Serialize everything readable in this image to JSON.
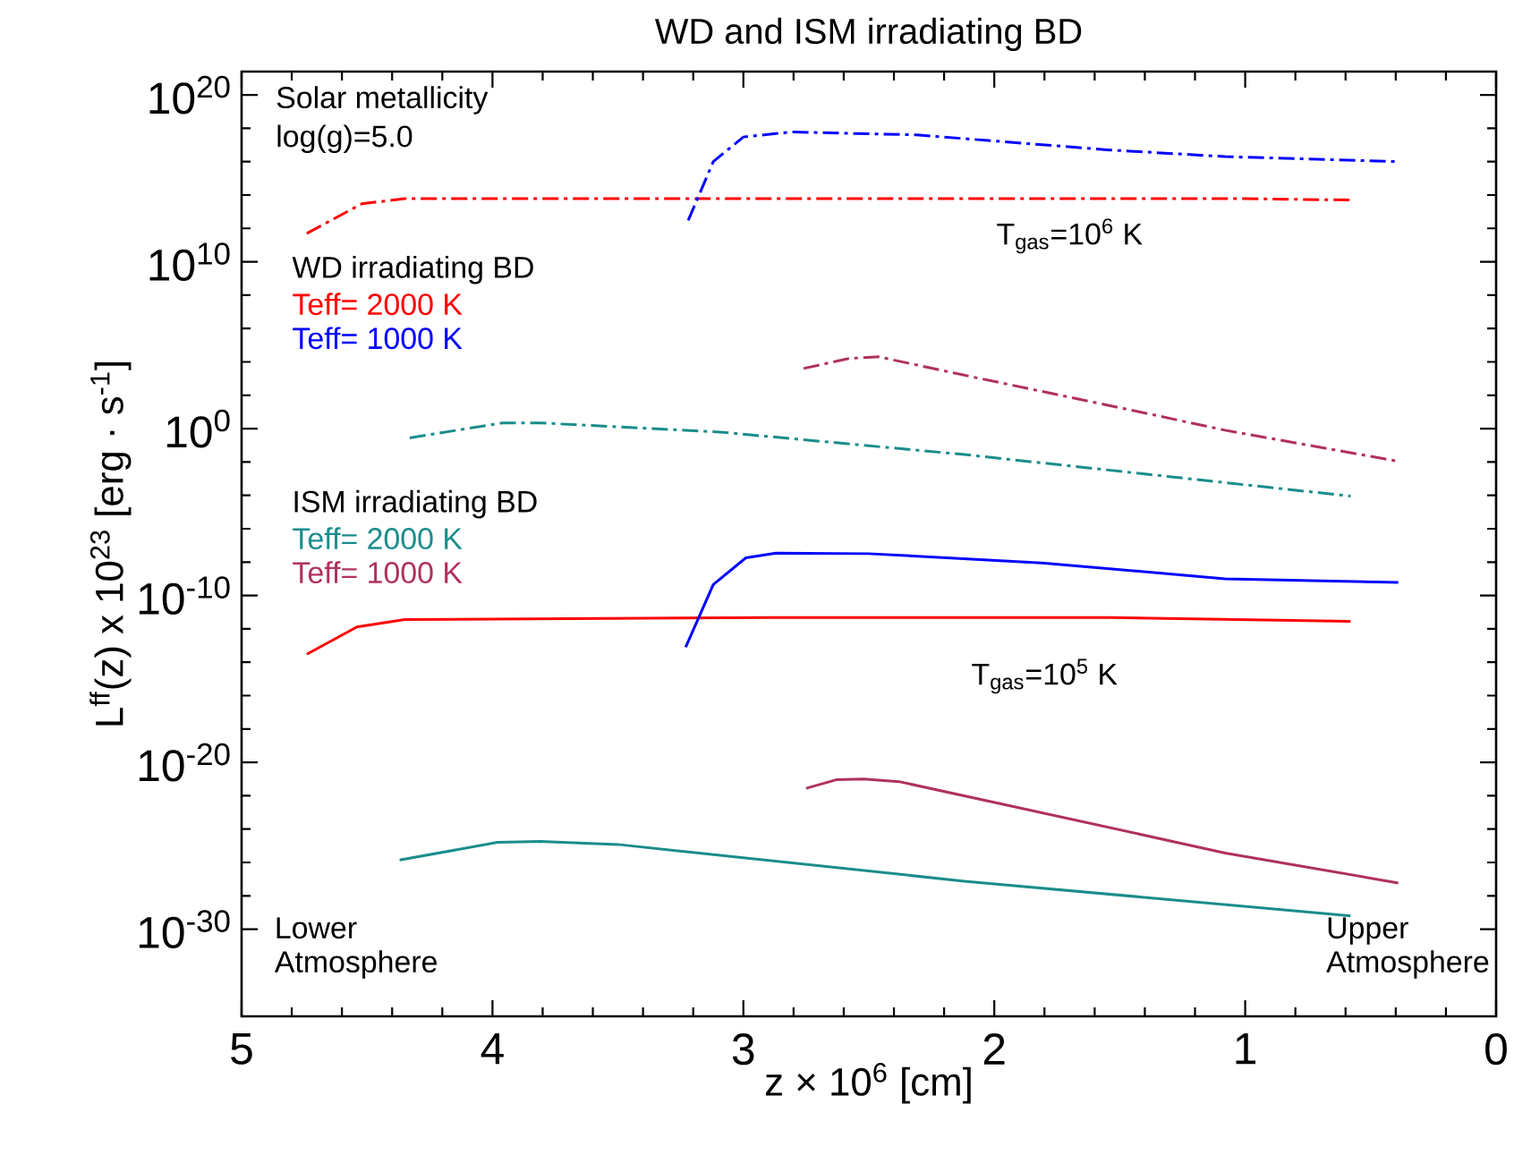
{
  "chart_data": {
    "type": "line",
    "title": "WD and ISM irradiating BD",
    "xlabel": "z × 10$^{6}$ [cm]",
    "ylabel": "L$^{ff}$(z) x 10$^{23}$ [erg · s$^{-1}$]",
    "log": "y",
    "xlim": [
      5,
      0
    ],
    "xticks": [
      5,
      4,
      3,
      2,
      1,
      0
    ],
    "ylim": [
      6e-36,
      2.5e+21
    ],
    "yticks": [
      {
        "value": 1e-30,
        "label": "10$^{-30}$"
      },
      {
        "value": 1e-20,
        "label": "10$^{-20}$"
      },
      {
        "value": 1e-10,
        "label": "10$^{-10}$"
      },
      {
        "value": 1,
        "label": "10$^{0}$"
      },
      {
        "value": 10000000000.0,
        "label": "10$^{10}$"
      },
      {
        "value": 1e+20,
        "label": "10$^{20}$"
      }
    ],
    "legend": "top left",
    "annotations": [
      "Solar metallicity",
      "log(g)=5.0",
      "WD irradiating BD",
      "ISM irradiating BD",
      "T$_{gas}$=10$^{6}$ K",
      "T$_{gas}$=10$^{5}$ K",
      "Lower Atmosphere",
      "Upper Atmosphere"
    ],
    "series": [
      {
        "name": "Teff= 2000 K",
        "color": "#ff0000",
        "line_style": "dashdot",
        "x": [
          4.74,
          4.52,
          4.35,
          3.0,
          2.0,
          1.0,
          0.58
        ],
        "values": [
          500000000000.0,
          30000000000000.0,
          60000000000000.0,
          60000000000000.0,
          60000000000000.0,
          60000000000000.0,
          50000000000000.0
        ]
      },
      {
        "name": "Teff= 1000 K",
        "color": "#0000ff",
        "line_style": "dashdot",
        "x": [
          3.22,
          3.12,
          3.0,
          2.81,
          2.31,
          1.54,
          1.08,
          0.39
        ],
        "values": [
          3000000000000.0,
          1e+16,
          3e+17,
          6e+17,
          4e+17,
          5e+16,
          2e+16,
          1e+16
        ]
      },
      {
        "name": "Teff= 2000 K",
        "color": "#1a8c8c",
        "line_style": "dashdot",
        "x": [
          4.33,
          3.96,
          3.81,
          3.08,
          2.12,
          0.58
        ],
        "values": [
          0.28,
          2.2,
          2.2,
          0.6,
          0.028,
          9e-05
        ]
      },
      {
        "name": "Teff= 1000 K",
        "color": "#b03060",
        "line_style": "dashdot",
        "x": [
          2.76,
          2.58,
          2.46,
          2.12,
          1.42,
          1.08,
          0.39
        ],
        "values": [
          4000.0,
          16000.0,
          20000.0,
          1600.0,
          10,
          0.8,
          0.011
        ]
      },
      {
        "color": "#ff0000",
        "line_style": "solid",
        "x": [
          4.74,
          4.54,
          4.35,
          2.89,
          1.54,
          0.58
        ],
        "values": [
          3e-14,
          1.3e-12,
          3.6e-12,
          4.8e-12,
          4.8e-12,
          2.8e-12
        ]
      },
      {
        "color": "#0000ff",
        "line_style": "solid",
        "x": [
          3.23,
          3.12,
          2.99,
          2.87,
          2.5,
          1.81,
          1.08,
          0.39
        ],
        "values": [
          8e-14,
          4.5e-10,
          1.8e-08,
          3.5e-08,
          3.2e-08,
          9e-09,
          1e-09,
          6e-10
        ]
      },
      {
        "color": "#1a8c8c",
        "line_style": "solid",
        "x": [
          4.37,
          3.98,
          3.81,
          3.5,
          2.12,
          0.58
        ],
        "values": [
          1.4e-26,
          1.6e-25,
          1.8e-25,
          1.2e-25,
          7.6e-28,
          6.3e-30
        ]
      },
      {
        "color": "#b03060",
        "line_style": "solid",
        "x": [
          2.75,
          2.63,
          2.52,
          2.38,
          1.92,
          1.08,
          0.39
        ],
        "values": [
          2.8e-22,
          9e-22,
          1e-21,
          7e-22,
          2.2e-23,
          3.7e-26,
          5.9e-28
        ]
      }
    ]
  }
}
